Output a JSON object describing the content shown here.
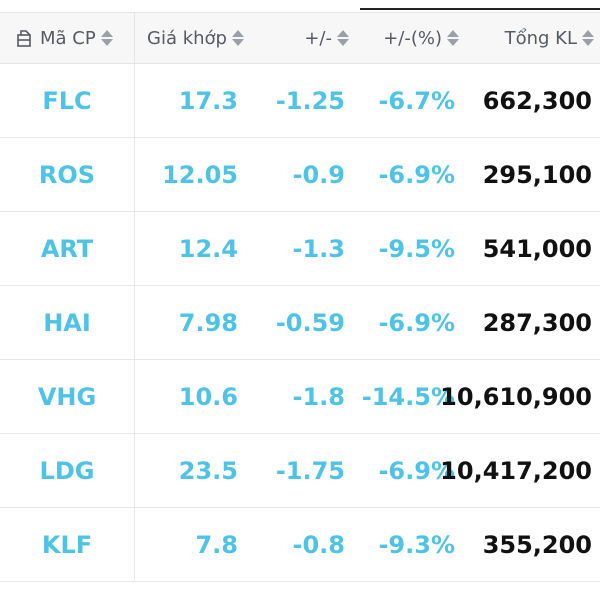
{
  "header": {
    "symbol": "Mã CP",
    "price": "Giá khớp",
    "change": "+/-",
    "change_pct": "+/-(%)",
    "volume": "Tổng KL"
  },
  "colors": {
    "accent": "#4fc3e6",
    "volume_text": "#111111",
    "header_text": "#555a63"
  },
  "rows": [
    {
      "symbol": "FLC",
      "price": "17.3",
      "change": "-1.25",
      "change_pct": "-6.7%",
      "volume": "662,300"
    },
    {
      "symbol": "ROS",
      "price": "12.05",
      "change": "-0.9",
      "change_pct": "-6.9%",
      "volume": "295,100"
    },
    {
      "symbol": "ART",
      "price": "12.4",
      "change": "-1.3",
      "change_pct": "-9.5%",
      "volume": "541,000"
    },
    {
      "symbol": "HAI",
      "price": "7.98",
      "change": "-0.59",
      "change_pct": "-6.9%",
      "volume": "287,300"
    },
    {
      "symbol": "VHG",
      "price": "10.6",
      "change": "-1.8",
      "change_pct": "-14.5%",
      "volume": "10,610,900"
    },
    {
      "symbol": "LDG",
      "price": "23.5",
      "change": "-1.75",
      "change_pct": "-6.9%",
      "volume": "10,417,200"
    },
    {
      "symbol": "KLF",
      "price": "7.8",
      "change": "-0.8",
      "change_pct": "-9.3%",
      "volume": "355,200"
    }
  ]
}
